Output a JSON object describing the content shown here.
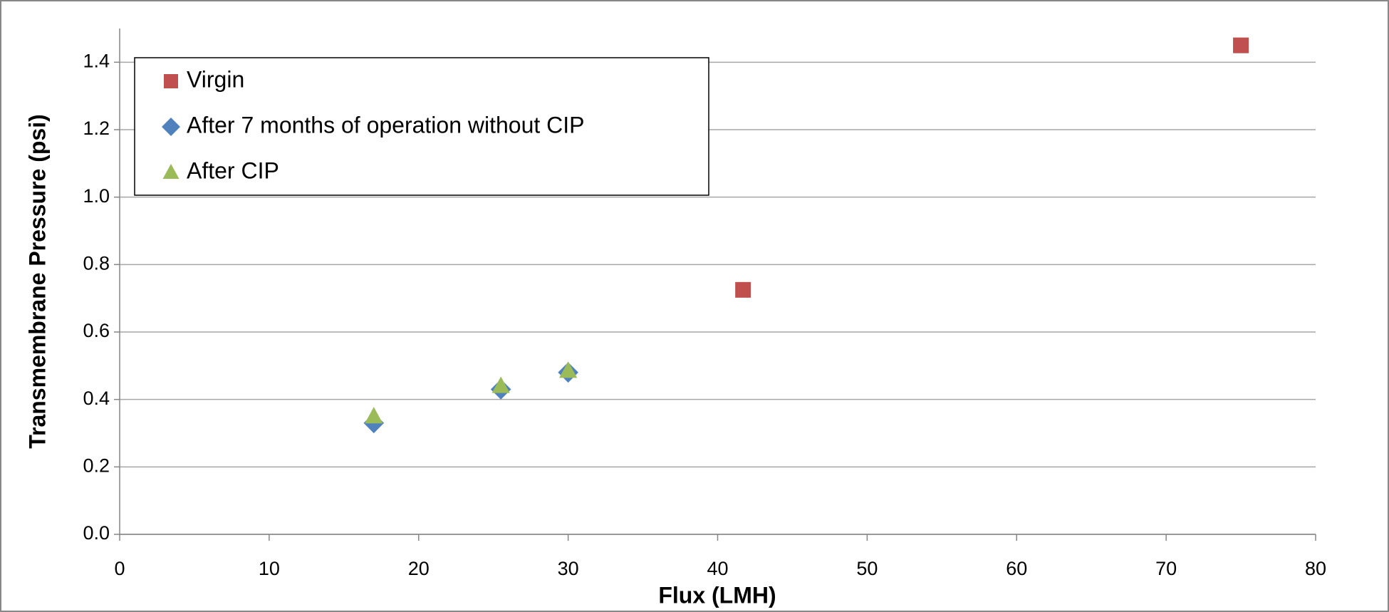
{
  "chart_data": {
    "type": "scatter",
    "x_label": "Flux (LMH)",
    "y_label": "Transmembrane Pressure (psi)",
    "xlim": [
      0,
      80
    ],
    "xticks": [
      0,
      10,
      20,
      30,
      40,
      50,
      60,
      70,
      80
    ],
    "ylim": [
      0,
      1.5
    ],
    "yticks": [
      {
        "value": 0,
        "label": "0.0"
      },
      0.2,
      0.4,
      0.6,
      0.8,
      {
        "value": 1,
        "label": "1.0"
      },
      1.2,
      1.4
    ],
    "grid": true,
    "legend": "upper left",
    "series": [
      {
        "name": "Virgin",
        "color": "#c0504d",
        "marker": "square",
        "x": [
          41.7,
          75
        ],
        "values": [
          0.725,
          1.45
        ]
      },
      {
        "name": "After 7 months of operation without CIP",
        "color": "#4f81bd",
        "marker": "diamond",
        "x": [
          17,
          25.5,
          30
        ],
        "values": [
          0.33,
          0.43,
          0.48
        ]
      },
      {
        "name": "After CIP",
        "color": "#9bbb59",
        "marker": "triangle",
        "x": [
          17,
          25.5,
          30
        ],
        "values": [
          0.35,
          0.44,
          0.485
        ]
      }
    ]
  }
}
